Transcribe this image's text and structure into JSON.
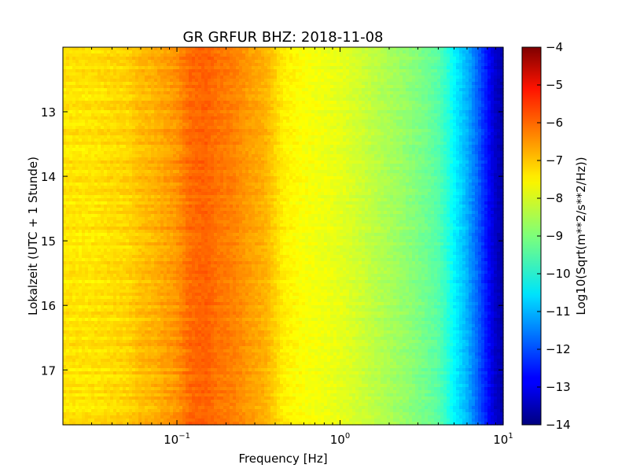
{
  "chart_data": {
    "type": "heatmap",
    "title": "GR GRFUR BHZ: 2018-11-08",
    "xlabel": "Frequency [Hz]",
    "ylabel": "Lokalzeit (UTC + 1 Stunde)",
    "colorbar_label": "Log10(Sqrt(m**2/s**2/Hz))",
    "x_scale": "log",
    "xlim": [
      0.02,
      10
    ],
    "x_ticks": [
      {
        "value": 0.1,
        "base": "10",
        "exp": "−1"
      },
      {
        "value": 1,
        "base": "10",
        "exp": "0"
      },
      {
        "value": 10,
        "base": "10",
        "exp": "1"
      }
    ],
    "ylim": [
      12.0,
      17.85
    ],
    "y_ticks": [
      "13",
      "14",
      "15",
      "16",
      "17"
    ],
    "y_tick_values": [
      13,
      14,
      15,
      16,
      17
    ],
    "colorbar_range": [
      -14,
      -4
    ],
    "colorbar_ticks": [
      "−4",
      "−5",
      "−6",
      "−7",
      "−8",
      "−9",
      "−10",
      "−11",
      "−12",
      "−13",
      "−14"
    ],
    "colorbar_tick_values": [
      -4,
      -5,
      -6,
      -7,
      -8,
      -9,
      -10,
      -11,
      -12,
      -13,
      -14
    ],
    "colormap": "jet",
    "grid": false,
    "spectrum_profile": {
      "frequency_hz": [
        0.02,
        0.03,
        0.04,
        0.05,
        0.06,
        0.07,
        0.08,
        0.09,
        0.1,
        0.12,
        0.15,
        0.18,
        0.22,
        0.28,
        0.35,
        0.45,
        0.6,
        0.8,
        1.0,
        1.3,
        1.6,
        2.0,
        2.5,
        3.0,
        3.5,
        4.0,
        4.5,
        5.0,
        6.0,
        7.0,
        8.0,
        9.0,
        10.0
      ],
      "level_log10": [
        -7.5,
        -7.5,
        -7.4,
        -7.35,
        -7.1,
        -7.05,
        -6.9,
        -6.8,
        -6.7,
        -6.3,
        -6.2,
        -6.4,
        -6.5,
        -6.8,
        -7.0,
        -7.6,
        -7.8,
        -7.9,
        -8.0,
        -8.2,
        -8.4,
        -8.6,
        -8.8,
        -9.0,
        -9.2,
        -9.4,
        -9.8,
        -10.3,
        -11.0,
        -11.8,
        -12.6,
        -13.3,
        -13.6
      ]
    }
  }
}
